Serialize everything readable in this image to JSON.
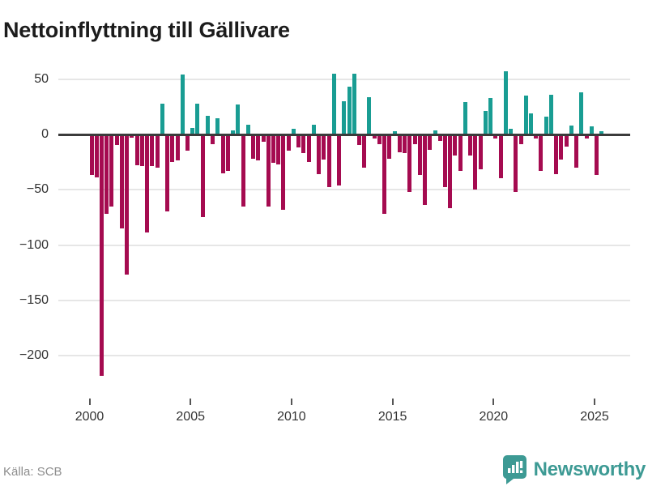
{
  "header": {
    "title": "Nettoinflyttning till Gällivare"
  },
  "footer": {
    "source": "Källa: SCB",
    "brand": "Newsworthy"
  },
  "colors": {
    "positive": "#199d93",
    "negative": "#a50b50",
    "axis": "#3b3b3b",
    "grid": "#e6e6e6",
    "brand_teal": "#3d9a94"
  },
  "chart_data": {
    "type": "bar",
    "title": "Nettoinflyttning till Gällivare",
    "xlabel": "",
    "ylabel": "",
    "grid": true,
    "legend": false,
    "ylim": [
      -225,
      60
    ],
    "yticks": [
      50,
      0,
      -50,
      -100,
      -150,
      -200
    ],
    "xticks": [
      2000,
      2005,
      2010,
      2015,
      2020,
      2025
    ],
    "categories": [
      "2000Q1",
      "2000Q2",
      "2000Q3",
      "2000Q4",
      "2001Q1",
      "2001Q2",
      "2001Q3",
      "2001Q4",
      "2002Q1",
      "2002Q2",
      "2002Q3",
      "2002Q4",
      "2003Q1",
      "2003Q2",
      "2003Q3",
      "2003Q4",
      "2004Q1",
      "2004Q2",
      "2004Q3",
      "2004Q4",
      "2005Q1",
      "2005Q2",
      "2005Q3",
      "2005Q4",
      "2006Q1",
      "2006Q2",
      "2006Q3",
      "2006Q4",
      "2007Q1",
      "2007Q2",
      "2007Q3",
      "2007Q4",
      "2008Q1",
      "2008Q2",
      "2008Q3",
      "2008Q4",
      "2009Q1",
      "2009Q2",
      "2009Q3",
      "2009Q4",
      "2010Q1",
      "2010Q2",
      "2010Q3",
      "2010Q4",
      "2011Q1",
      "2011Q2",
      "2011Q3",
      "2011Q4",
      "2012Q1",
      "2012Q2",
      "2012Q3",
      "2012Q4",
      "2013Q1",
      "2013Q2",
      "2013Q3",
      "2013Q4",
      "2014Q1",
      "2014Q2",
      "2014Q3",
      "2014Q4",
      "2015Q1",
      "2015Q2",
      "2015Q3",
      "2015Q4",
      "2016Q1",
      "2016Q2",
      "2016Q3",
      "2016Q4",
      "2017Q1",
      "2017Q2",
      "2017Q3",
      "2017Q4",
      "2018Q1",
      "2018Q2",
      "2018Q3",
      "2018Q4",
      "2019Q1",
      "2019Q2",
      "2019Q3",
      "2019Q4",
      "2020Q1",
      "2020Q2",
      "2020Q3",
      "2020Q4",
      "2021Q1",
      "2021Q2",
      "2021Q3",
      "2021Q4",
      "2022Q1",
      "2022Q2",
      "2022Q3",
      "2022Q4",
      "2023Q1",
      "2023Q2",
      "2023Q3",
      "2023Q4",
      "2024Q1",
      "2024Q2",
      "2024Q3",
      "2024Q4",
      "2025Q1",
      "2025Q2"
    ],
    "values": [
      -36,
      -38,
      -217,
      -71,
      -64,
      -9,
      -84,
      -126,
      -2,
      -27,
      -28,
      -88,
      -28,
      -29,
      28,
      -69,
      -24,
      -23,
      54,
      -14,
      6,
      28,
      -74,
      17,
      -8,
      15,
      -34,
      -32,
      4,
      27,
      -64,
      9,
      -21,
      -23,
      -6,
      -64,
      -25,
      -26,
      -67,
      -14,
      5,
      -11,
      -16,
      -24,
      9,
      -35,
      -22,
      -47,
      55,
      -45,
      30,
      43,
      55,
      -9,
      -29,
      34,
      -3,
      -8,
      -71,
      -21,
      3,
      -15,
      -16,
      -51,
      -8,
      -36,
      -63,
      -13,
      4,
      -5,
      -47,
      -66,
      -18,
      -32,
      29,
      -18,
      -49,
      -31,
      21,
      33,
      -3,
      -39,
      57,
      5,
      -51,
      -8,
      35,
      19,
      -3,
      -32,
      16,
      36,
      -35,
      -22,
      -10,
      8,
      -29,
      38,
      -3,
      7,
      -36,
      3
    ]
  }
}
